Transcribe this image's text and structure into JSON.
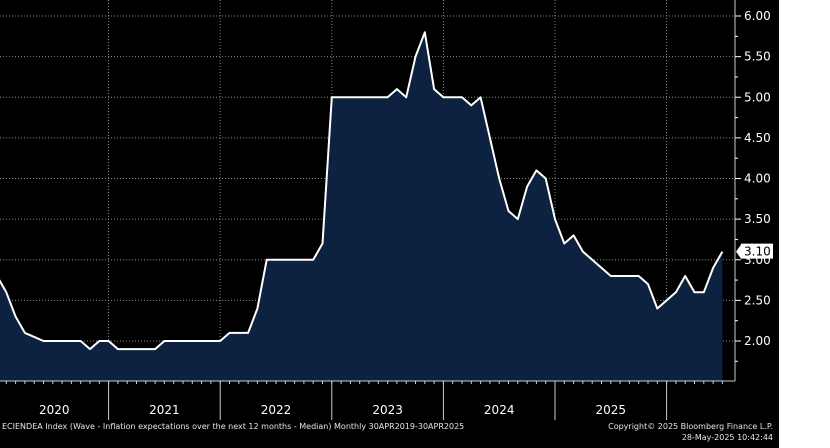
{
  "chart_data": {
    "type": "area",
    "series_name": "ECIENDEA Index",
    "x_start": "2020-01",
    "values": [
      2.8,
      2.6,
      2.3,
      2.1,
      2.05,
      2.0,
      2.0,
      2.0,
      2.0,
      2.0,
      1.9,
      2.0,
      2.0,
      1.9,
      1.9,
      1.9,
      1.9,
      1.9,
      2.0,
      2.0,
      2.0,
      2.0,
      2.0,
      2.0,
      2.0,
      2.1,
      2.1,
      2.1,
      2.4,
      3.0,
      3.0,
      3.0,
      3.0,
      3.0,
      3.0,
      3.2,
      5.0,
      5.0,
      5.0,
      5.0,
      5.0,
      5.0,
      5.0,
      5.1,
      5.0,
      5.5,
      5.8,
      5.1,
      5.0,
      5.0,
      5.0,
      4.9,
      5.0,
      4.5,
      4.0,
      3.6,
      3.5,
      3.9,
      4.1,
      4.0,
      3.5,
      3.2,
      3.3,
      3.1,
      3.0,
      2.9,
      2.8,
      2.8,
      2.8,
      2.8,
      2.7,
      2.4,
      2.5,
      2.6,
      2.8,
      2.6,
      2.6,
      2.9,
      3.1
    ],
    "last_value_label": "3.10",
    "y_ticks": [
      "6.00",
      "5.50",
      "5.00",
      "4.50",
      "4.00",
      "3.50",
      "3.00",
      "2.50",
      "2.00"
    ],
    "ylim": [
      1.5,
      6.2
    ],
    "x_tick_labels": [
      "2020",
      "2021",
      "2022",
      "2023",
      "2024",
      "2025"
    ],
    "colors": {
      "background": "#000000",
      "fill": "#0d2240",
      "line": "#ffffff",
      "grid": "#8a8a8a",
      "axis_text": "#ffffff",
      "label_bg": "#ffffff",
      "label_text": "#000000"
    }
  },
  "footer": {
    "description": "ECIENDEA Index (Wave - Inflation expectations over the next 12 months - Median) Monthly 30APR2019-30APR2025",
    "copyright": "Copyright© 2025 Bloomberg Finance L.P.",
    "timestamp": "28-May-2025 10:42:44"
  }
}
